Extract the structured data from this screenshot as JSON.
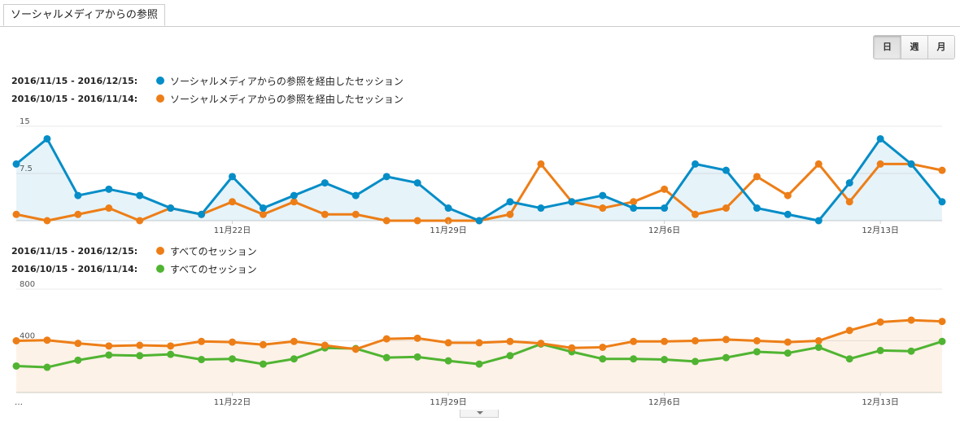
{
  "tab": {
    "label": "ソーシャルメディアからの参照"
  },
  "period_buttons": [
    {
      "label": "日",
      "active": true
    },
    {
      "label": "週",
      "active": false
    },
    {
      "label": "月",
      "active": false
    }
  ],
  "charts": {
    "top": {
      "legend": [
        {
          "range": "2016/11/15 - 2016/12/15:",
          "label": "ソーシャルメディアからの参照を経由したセッション",
          "color": "#058dc7"
        },
        {
          "range": "2016/10/15 - 2016/11/14:",
          "label": "ソーシャルメディアからの参照を経由したセッション",
          "color": "#ed7e17"
        }
      ]
    },
    "bottom": {
      "legend": [
        {
          "range": "2016/11/15 - 2016/12/15:",
          "label": "すべてのセッション",
          "color": "#ed7e17"
        },
        {
          "range": "2016/10/15 - 2016/11/14:",
          "label": "すべてのセッション",
          "color": "#50b432"
        }
      ]
    }
  },
  "chart_data": [
    {
      "type": "area",
      "y_ticks": [
        "15",
        "7.5"
      ],
      "ylim": [
        0,
        15
      ],
      "x_tick_labels": [
        "11月22日",
        "11月29日",
        "12月6日",
        "12月13日"
      ],
      "x_tick_indices": [
        7,
        14,
        21,
        28
      ],
      "grid": true,
      "series": [
        {
          "name": "2016/11/15 - 2016/12/15",
          "color": "#058dc7",
          "fill": true,
          "values": [
            9,
            13,
            4,
            5,
            4,
            2,
            1,
            7,
            2,
            4,
            6,
            4,
            7,
            6,
            2,
            0,
            3,
            2,
            3,
            4,
            2,
            2,
            9,
            8,
            2,
            1,
            0,
            6,
            13,
            9,
            3
          ]
        },
        {
          "name": "2016/10/15 - 2016/11/14",
          "color": "#ed7e17",
          "fill": false,
          "values": [
            1,
            0,
            1,
            2,
            0,
            2,
            1,
            3,
            1,
            3,
            1,
            1,
            0,
            0,
            0,
            0,
            1,
            9,
            3,
            2,
            3,
            5,
            1,
            2,
            7,
            4,
            9,
            3,
            9,
            9,
            8
          ]
        }
      ]
    },
    {
      "type": "area",
      "y_ticks": [
        "800",
        "400"
      ],
      "ylim": [
        0,
        800
      ],
      "x_tick_labels": [
        "…",
        "11月22日",
        "11月29日",
        "12月6日",
        "12月13日"
      ],
      "x_tick_indices": [
        0,
        7,
        14,
        21,
        28
      ],
      "grid": true,
      "series": [
        {
          "name": "2016/11/15 - 2016/12/15",
          "color": "#ed7e17",
          "fill": true,
          "values": [
            400,
            405,
            380,
            360,
            365,
            360,
            395,
            390,
            370,
            395,
            365,
            335,
            415,
            420,
            385,
            385,
            395,
            380,
            345,
            350,
            395,
            395,
            400,
            410,
            400,
            390,
            400,
            480,
            545,
            560,
            550
          ]
        },
        {
          "name": "2016/10/15 - 2016/11/14",
          "color": "#50b432",
          "fill": false,
          "values": [
            205,
            195,
            250,
            290,
            285,
            295,
            255,
            260,
            220,
            260,
            345,
            340,
            270,
            275,
            245,
            220,
            285,
            375,
            315,
            260,
            260,
            255,
            240,
            270,
            315,
            305,
            350,
            260,
            325,
            320,
            395
          ]
        }
      ]
    }
  ]
}
